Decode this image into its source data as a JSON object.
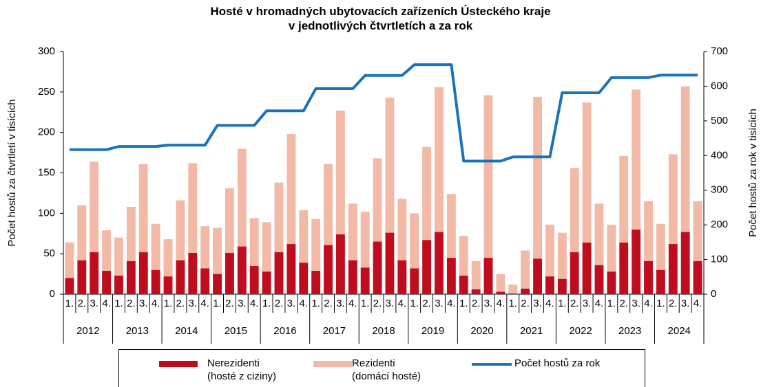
{
  "chart_data": {
    "type": "bar",
    "stacked": true,
    "title": "Hosté  v hromadných ubytovacích zařízeních Ústeckého kraje\nv jednotlivých čtvrtletích a za rok",
    "y_label": "Počet hostů za čtvrtletí v tisících",
    "y2_label": "Počet hostů za rok v tisících",
    "categories": [
      "1.",
      "2.",
      "3.",
      "4.",
      "1.",
      "2.",
      "3.",
      "4.",
      "1.",
      "2.",
      "3.",
      "4.",
      "1.",
      "2.",
      "3.",
      "4.",
      "1.",
      "2.",
      "3.",
      "4.",
      "1.",
      "2.",
      "3.",
      "4.",
      "1.",
      "2.",
      "3.",
      "4.",
      "1.",
      "2.",
      "3.",
      "4.",
      "1.",
      "2.",
      "3.",
      "4.",
      "1.",
      "2.",
      "3.",
      "4.",
      "1.",
      "2.",
      "3.",
      "4.",
      "1.",
      "2.",
      "3.",
      "4.",
      "1.",
      "2.",
      "3.",
      "4."
    ],
    "groups": [
      "2012",
      "2013",
      "2014",
      "2015",
      "2016",
      "2017",
      "2018",
      "2019",
      "2020",
      "2021",
      "2022",
      "2023",
      "2024"
    ],
    "ylim": [
      0,
      300
    ],
    "yticks": [
      0,
      50,
      100,
      150,
      200,
      250,
      300
    ],
    "y2lim": [
      0,
      700
    ],
    "y2ticks": [
      0,
      100,
      200,
      300,
      400,
      500,
      600,
      700
    ],
    "legend": "bottom",
    "series": [
      {
        "name": "Nerezidenti\n(hosté z ciziny)",
        "color": "#c00d1e",
        "values": [
          20,
          42,
          52,
          29,
          23,
          41,
          52,
          30,
          22,
          42,
          51,
          32,
          25,
          51,
          59,
          35,
          28,
          52,
          62,
          39,
          29,
          61,
          74,
          42,
          33,
          65,
          76,
          42,
          32,
          67,
          77,
          45,
          23,
          6,
          45,
          3,
          1,
          7,
          44,
          22,
          19,
          52,
          64,
          36,
          28,
          64,
          80,
          41,
          30,
          62,
          77,
          41
        ]
      },
      {
        "name": "Rezidenti\n(domácí hosté)",
        "color": "#f2b9a7",
        "values": [
          44,
          68,
          112,
          50,
          47,
          67,
          109,
          57,
          46,
          74,
          111,
          52,
          57,
          80,
          121,
          59,
          61,
          86,
          136,
          65,
          64,
          100,
          153,
          70,
          69,
          103,
          167,
          76,
          68,
          115,
          179,
          79,
          49,
          35,
          201,
          22,
          11,
          47,
          200,
          64,
          57,
          104,
          173,
          76,
          58,
          107,
          173,
          74,
          57,
          111,
          180,
          74
        ]
      },
      {
        "name": "Počet hostů za rok",
        "color": "#1a72bb",
        "type": "line",
        "axis": "y2",
        "values": [
          417,
          417,
          417,
          417,
          426,
          426,
          426,
          426,
          430,
          430,
          430,
          430,
          487,
          487,
          487,
          487,
          529,
          529,
          529,
          529,
          593,
          593,
          593,
          593,
          631,
          631,
          631,
          631,
          662,
          662,
          662,
          662,
          384,
          384,
          384,
          384,
          396,
          396,
          396,
          396,
          581,
          581,
          581,
          581,
          625,
          625,
          625,
          625,
          632,
          632,
          632,
          632
        ]
      }
    ]
  }
}
